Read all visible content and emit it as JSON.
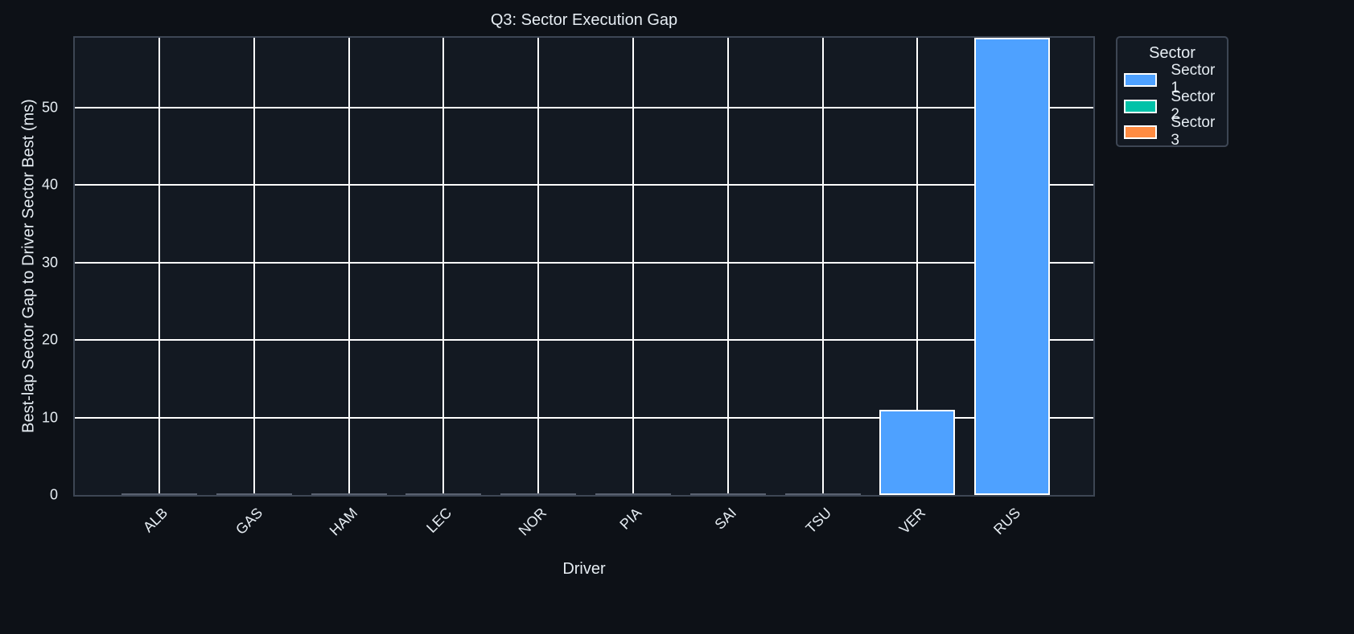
{
  "chart_data": {
    "type": "bar",
    "title": "Q3: Sector Execution Gap",
    "xlabel": "Driver",
    "ylabel": "Best-lap Sector Gap to Driver Sector Best (ms)",
    "categories": [
      "ALB",
      "GAS",
      "HAM",
      "LEC",
      "NOR",
      "PIA",
      "SAI",
      "TSU",
      "VER",
      "RUS"
    ],
    "series": [
      {
        "name": "Sector 1",
        "color": "#4ea1ff",
        "values": [
          0,
          0,
          0,
          0,
          0,
          0,
          0,
          0,
          11,
          59
        ]
      },
      {
        "name": "Sector 2",
        "color": "#00c2a8",
        "values": [
          0,
          0,
          0,
          0,
          0,
          0,
          0,
          0,
          0,
          0
        ]
      },
      {
        "name": "Sector 3",
        "color": "#ff8c42",
        "values": [
          0,
          0,
          0,
          0,
          0,
          0,
          0,
          0,
          0,
          0
        ]
      }
    ],
    "stacked": true,
    "ylim": [
      0,
      59
    ],
    "yticks": [
      0,
      10,
      20,
      30,
      40,
      50
    ],
    "grid": true,
    "legend": {
      "title": "Sector",
      "position": "outside upper right"
    }
  },
  "legend": {
    "title": "Sector",
    "items": [
      {
        "label": "Sector 1",
        "color": "#4ea1ff"
      },
      {
        "label": "Sector 2",
        "color": "#00c2a8"
      },
      {
        "label": "Sector 3",
        "color": "#ff8c42"
      }
    ]
  },
  "theme": {
    "background": "#0d1117",
    "plot_background": "#131922",
    "grid": "#ffffff",
    "axis": "#3d4654",
    "text": "#e6edf3"
  }
}
